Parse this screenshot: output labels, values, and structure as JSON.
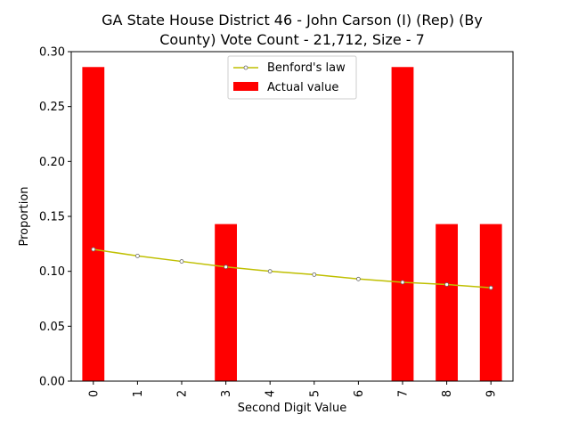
{
  "chart_data": {
    "type": "bar",
    "title_line1": "GA State House District 46 - John Carson (I) (Rep) (By",
    "title_line2": "County) Vote Count - 21,712, Size - 7",
    "xlabel": "Second Digit Value",
    "ylabel": "Proportion",
    "ylim": [
      0,
      0.3
    ],
    "yticks": [
      "0.00",
      "0.05",
      "0.10",
      "0.15",
      "0.20",
      "0.25",
      "0.30"
    ],
    "categories": [
      "0",
      "1",
      "2",
      "3",
      "4",
      "5",
      "6",
      "7",
      "8",
      "9"
    ],
    "series": [
      {
        "name": "Benford's law",
        "type": "line",
        "color": "#bfbf00",
        "values": [
          0.12,
          0.114,
          0.109,
          0.104,
          0.1,
          0.097,
          0.093,
          0.09,
          0.088,
          0.085
        ]
      },
      {
        "name": "Actual value",
        "type": "bar",
        "color": "#ff0000",
        "values": [
          0.286,
          0,
          0,
          0.143,
          0,
          0,
          0,
          0.286,
          0.143,
          0.143
        ]
      }
    ],
    "grid": false,
    "legend_position": "top-center"
  }
}
